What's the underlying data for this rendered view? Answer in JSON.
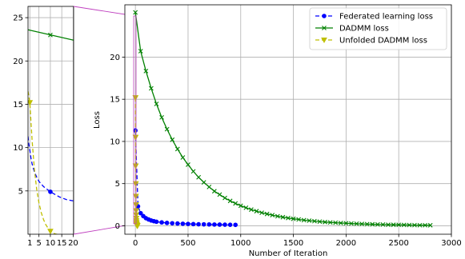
{
  "chart_data": [
    {
      "type": "line",
      "role": "main",
      "xlabel": "Number of Iteration",
      "ylabel": "Loss",
      "xlim": [
        -100,
        3000
      ],
      "ylim": [
        -1,
        26.2
      ],
      "xticks": [
        0,
        500,
        1000,
        1500,
        2000,
        2500,
        3000
      ],
      "yticks": [
        0,
        5,
        10,
        15,
        20
      ],
      "grid": true,
      "legend_position": "top-right",
      "series": [
        {
          "name": "Federated learning loss",
          "color": "#0000ff",
          "linestyle": "dashed",
          "marker": "circle",
          "x": [
            0,
            25,
            50,
            75,
            100,
            125,
            150,
            175,
            200,
            250,
            300,
            350,
            400,
            450,
            500,
            550,
            600,
            650,
            700,
            750,
            800,
            850,
            900,
            950
          ],
          "y": [
            11.3,
            2.3,
            1.5,
            1.15,
            0.9,
            0.75,
            0.63,
            0.55,
            0.48,
            0.4,
            0.34,
            0.3,
            0.27,
            0.24,
            0.22,
            0.2,
            0.18,
            0.17,
            0.16,
            0.15,
            0.14,
            0.13,
            0.12,
            0.11
          ]
        },
        {
          "name": "DADMM loss",
          "color": "#008000",
          "linestyle": "solid",
          "marker": "x",
          "x": [
            0,
            50,
            100,
            150,
            200,
            250,
            300,
            350,
            400,
            450,
            500,
            550,
            600,
            650,
            700,
            750,
            800,
            850,
            900,
            950,
            1000,
            1050,
            1100,
            1150,
            1200,
            1250,
            1300,
            1350,
            1400,
            1450,
            1500,
            1550,
            1600,
            1650,
            1700,
            1750,
            1800,
            1850,
            1900,
            1950,
            2000,
            2050,
            2100,
            2150,
            2200,
            2250,
            2300,
            2350,
            2400,
            2450,
            2500,
            2550,
            2600,
            2650,
            2700,
            2750,
            2800
          ],
          "y": [
            25.3,
            20.7,
            18.35,
            16.3,
            14.45,
            12.85,
            11.45,
            10.2,
            9.1,
            8.1,
            7.25,
            6.45,
            5.75,
            5.15,
            4.6,
            4.1,
            3.7,
            3.3,
            2.95,
            2.65,
            2.38,
            2.14,
            1.92,
            1.73,
            1.55,
            1.4,
            1.26,
            1.13,
            1.02,
            0.92,
            0.83,
            0.75,
            0.67,
            0.61,
            0.55,
            0.49,
            0.44,
            0.4,
            0.36,
            0.33,
            0.3,
            0.27,
            0.24,
            0.22,
            0.2,
            0.18,
            0.16,
            0.15,
            0.13,
            0.12,
            0.11,
            0.1,
            0.09,
            0.08,
            0.07,
            0.07,
            0.06
          ]
        },
        {
          "name": "Unfolded DADMM loss",
          "color": "#bfbf00",
          "linestyle": "dashed",
          "marker": "triangle-down",
          "x": [
            1,
            2,
            3,
            4,
            5,
            6,
            7,
            8,
            9,
            10,
            11,
            12,
            13,
            14,
            15,
            16,
            17,
            18,
            19,
            20
          ],
          "y": [
            15.2,
            10.5,
            7.1,
            5.0,
            3.5,
            2.5,
            1.8,
            1.3,
            0.9,
            0.6,
            0.4,
            0.25,
            0.15,
            0.1,
            0.05,
            0.03,
            0.02,
            0.01,
            0.01,
            0.0
          ]
        }
      ]
    },
    {
      "type": "line",
      "role": "inset-zoom",
      "xlim": [
        0.2,
        20.2
      ],
      "ylim": [
        0,
        26.3
      ],
      "xticks": [
        1,
        5,
        10,
        15,
        20
      ],
      "xtick_labels": [
        "1",
        "5",
        "10",
        "15",
        "20"
      ],
      "yticks": [
        5,
        10,
        15,
        20,
        25
      ],
      "grid": true,
      "series": [
        {
          "name": "Federated learning loss",
          "color": "#0000ff",
          "linestyle": "dashed",
          "x": [
            0.2,
            0.5,
            1,
            1.5,
            2,
            3,
            4,
            5,
            6,
            7,
            8,
            9,
            10,
            11,
            12,
            13,
            14,
            15,
            16,
            17,
            18,
            19,
            20
          ],
          "y": [
            11.3,
            10.5,
            9.7,
            8.8,
            8.1,
            7.2,
            6.6,
            6.1,
            5.8,
            5.5,
            5.3,
            5.1,
            4.9,
            4.75,
            4.6,
            4.45,
            4.3,
            4.2,
            4.1,
            4.0,
            3.95,
            3.9,
            3.85
          ],
          "marker_x": [
            10
          ],
          "marker_y": [
            4.9
          ]
        },
        {
          "name": "DADMM loss",
          "color": "#008000",
          "linestyle": "solid",
          "x": [
            0.2,
            20.2
          ],
          "y": [
            23.6,
            22.4
          ],
          "marker_x": [
            10
          ],
          "marker_y": [
            23.0
          ]
        },
        {
          "name": "Unfolded DADMM loss",
          "color": "#bfbf00",
          "linestyle": "dashed",
          "x": [
            0.2,
            1,
            2,
            3,
            4,
            5,
            6,
            7,
            8,
            9,
            10,
            11,
            12,
            13,
            14,
            15,
            16,
            17,
            18,
            19,
            20
          ],
          "y": [
            16.5,
            15.2,
            10.8,
            7.5,
            5.2,
            3.6,
            2.5,
            1.7,
            1.1,
            0.7,
            0.35,
            0.15,
            0.05,
            -0.02,
            -0.05,
            -0.07,
            -0.08,
            -0.09,
            -0.1,
            -0.1,
            -0.1
          ],
          "marker_x": [
            1,
            10
          ],
          "marker_y": [
            15.2,
            0.35
          ]
        }
      ]
    }
  ]
}
